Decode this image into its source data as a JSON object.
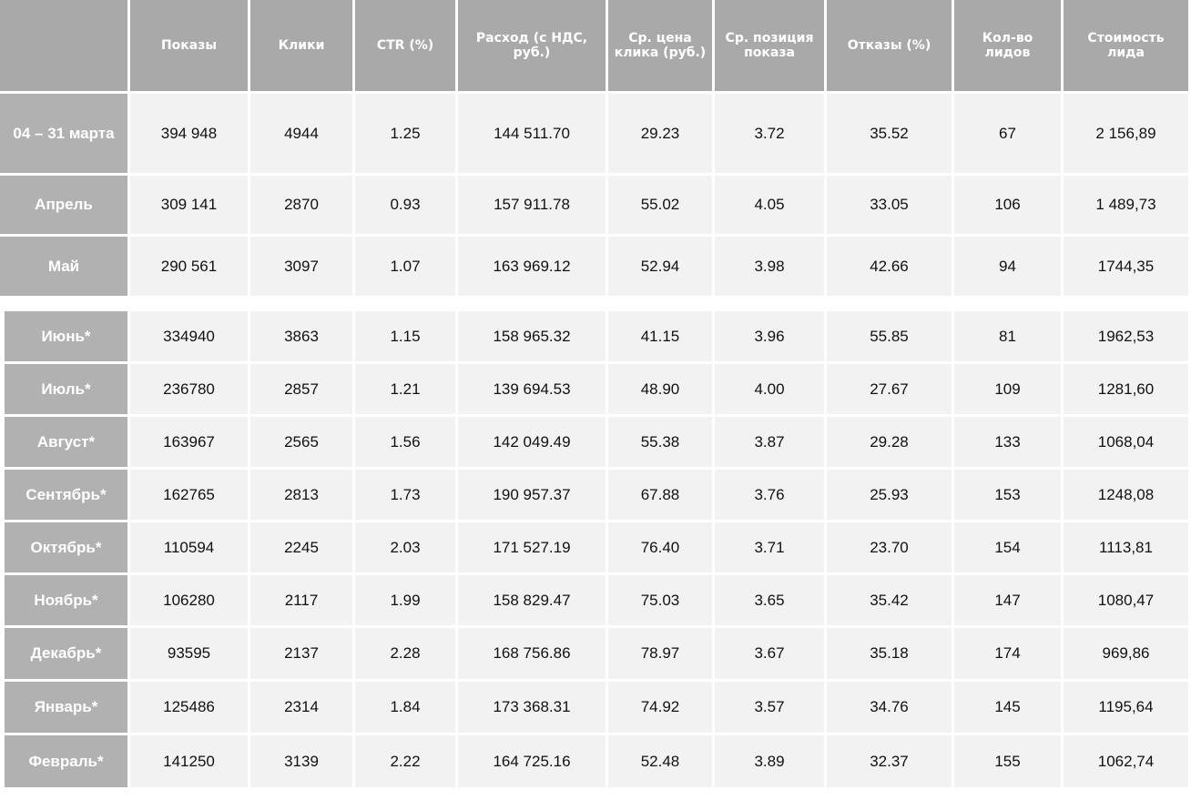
{
  "table": {
    "columns": [
      "Показы",
      "Клики",
      "CTR (%)",
      "Расход (с НДС, руб.)",
      "Ср. цена клика (руб.)",
      "Ср. позиция показа",
      "Отказы (%)",
      "Кол-во лидов",
      "Стоимость лида"
    ],
    "groups": [
      {
        "rows": [
          {
            "label": "04 – 31 марта",
            "cells": [
              "394 948",
              "4944",
              "1.25",
              "144 511.70",
              "29.23",
              "3.72",
              "35.52",
              "67",
              "2 156,89"
            ]
          },
          {
            "label": "Апрель",
            "cells": [
              "309 141",
              "2870",
              "0.93",
              "157 911.78",
              "55.02",
              "4.05",
              "33.05",
              "106",
              "1 489,73"
            ]
          },
          {
            "label": "Май",
            "cells": [
              "290 561",
              "3097",
              "1.07",
              "163 969.12",
              "52.94",
              "3.98",
              "42.66",
              "94",
              "1744,35"
            ]
          }
        ]
      },
      {
        "rows": [
          {
            "label": "Июнь*",
            "cells": [
              "334940",
              "3863",
              "1.15",
              "158 965.32",
              "41.15",
              "3.96",
              "55.85",
              "81",
              "1962,53"
            ]
          },
          {
            "label": "Июль*",
            "cells": [
              "236780",
              "2857",
              "1.21",
              "139 694.53",
              "48.90",
              "4.00",
              "27.67",
              "109",
              "1281,60"
            ]
          },
          {
            "label": "Август*",
            "cells": [
              "163967",
              "2565",
              "1.56",
              "142 049.49",
              "55.38",
              "3.87",
              "29.28",
              "133",
              "1068,04"
            ]
          },
          {
            "label": "Сентябрь*",
            "cells": [
              "162765",
              "2813",
              "1.73",
              "190 957.37",
              "67.88",
              "3.76",
              "25.93",
              "153",
              "1248,08"
            ]
          },
          {
            "label": "Октябрь*",
            "cells": [
              "110594",
              "2245",
              "2.03",
              "171 527.19",
              "76.40",
              "3.71",
              "23.70",
              "154",
              "1113,81"
            ]
          },
          {
            "label": "Ноябрь*",
            "cells": [
              "106280",
              "2117",
              "1.99",
              "158 829.47",
              "75.03",
              "3.65",
              "35.42",
              "147",
              "1080,47"
            ]
          },
          {
            "label": "Декабрь*",
            "cells": [
              "93595",
              "2137",
              "2.28",
              "168 756.86",
              "78.97",
              "3.67",
              "35.18",
              "174",
              "969,86"
            ]
          },
          {
            "label": "Январь*",
            "cells": [
              "125486",
              "2314",
              "1.84",
              "173 368.31",
              "74.92",
              "3.57",
              "34.76",
              "145",
              "1195,64"
            ]
          },
          {
            "label": "Февраль*",
            "cells": [
              "141250",
              "3139",
              "2.22",
              "164 725.16",
              "52.48",
              "3.89",
              "32.37",
              "155",
              "1062,74"
            ]
          }
        ]
      }
    ]
  }
}
